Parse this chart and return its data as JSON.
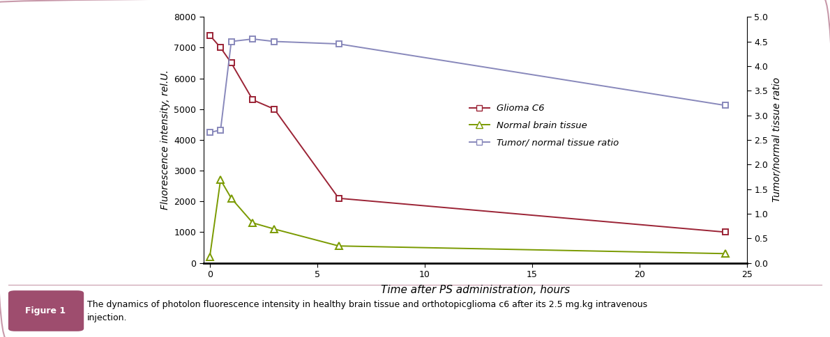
{
  "glioma_x": [
    0,
    0.5,
    1,
    2,
    3,
    6,
    24
  ],
  "glioma_y": [
    7400,
    7000,
    6500,
    5300,
    5000,
    2100,
    1000
  ],
  "normal_x": [
    0,
    0.5,
    1,
    2,
    3,
    6,
    24
  ],
  "normal_y": [
    200,
    2700,
    2100,
    1300,
    1100,
    550,
    300
  ],
  "ratio_x": [
    0,
    0.5,
    1,
    2,
    3,
    6,
    24
  ],
  "ratio_y": [
    2.65,
    2.7,
    4.5,
    4.55,
    4.5,
    4.45,
    3.2
  ],
  "glioma_color": "#9b2335",
  "normal_color": "#7a9a00",
  "ratio_color": "#8888bb",
  "ylabel_left": "Fluorescence intensity, rel.U.",
  "ylabel_right": "Tumor/normal tissue ratio",
  "xlabel": "Time after PS administration, hours",
  "ylim_left": [
    0,
    8000
  ],
  "ylim_right": [
    0,
    5
  ],
  "xlim": [
    -0.3,
    25
  ],
  "yticks_left": [
    0,
    1000,
    2000,
    3000,
    4000,
    5000,
    6000,
    7000,
    8000
  ],
  "yticks_right": [
    0,
    0.5,
    1,
    1.5,
    2,
    2.5,
    3,
    3.5,
    4,
    4.5,
    5
  ],
  "xticks": [
    0,
    5,
    10,
    15,
    20,
    25
  ],
  "legend_labels": [
    "Glioma C6",
    "Normal brain tissue",
    "Tumor/ normal tissue ratio"
  ],
  "border_color": "#c899aa",
  "caption_label": "Figure 1",
  "caption_label_bg": "#9e4d6e",
  "caption_text": "The dynamics of photolon fluorescence intensity in healthy brain tissue and orthotopicglioma c6 after its 2.5 mg.kg intravenous\ninjection."
}
